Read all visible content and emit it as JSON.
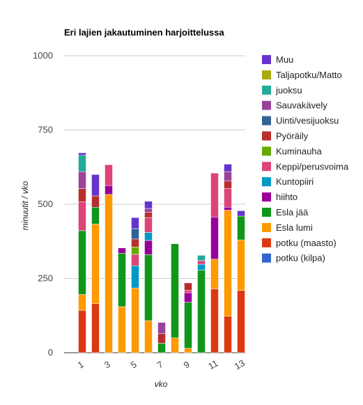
{
  "chart_data": {
    "type": "bar",
    "stacked": true,
    "title": "Eri lajien jakautuminen harjoittelussa",
    "xlabel": "vko",
    "ylabel": "minuutit / vko",
    "ylim": [
      0,
      1000
    ],
    "yticks": [
      0,
      250,
      500,
      750,
      1000
    ],
    "grid": true,
    "legend": "right",
    "x": [
      1,
      2,
      3,
      4,
      5,
      6,
      7,
      8,
      9,
      10,
      11,
      12,
      13
    ],
    "xtick_labels": [
      "1",
      "3",
      "5",
      "7",
      "9",
      "11",
      "13"
    ],
    "xtick_positions": [
      1,
      3,
      5,
      7,
      9,
      11,
      13
    ],
    "series": [
      {
        "name": "potku (kilpa)",
        "color": "#3366cc",
        "values": [
          0,
          0,
          0,
          0,
          0,
          0,
          0,
          0,
          0,
          0,
          0,
          0,
          0
        ]
      },
      {
        "name": "potku (maasto)",
        "color": "#dc3912",
        "values": [
          143,
          165,
          0,
          0,
          0,
          0,
          0,
          0,
          0,
          0,
          215,
          123,
          210
        ]
      },
      {
        "name": "Esla lumi",
        "color": "#ff9900",
        "values": [
          53,
          268,
          533,
          155,
          218,
          108,
          0,
          50,
          15,
          0,
          100,
          357,
          170
        ]
      },
      {
        "name": "Esla jää",
        "color": "#109618",
        "values": [
          215,
          57,
          0,
          180,
          0,
          222,
          32,
          317,
          155,
          278,
          0,
          0,
          80
        ]
      },
      {
        "name": "hiihto",
        "color": "#990099",
        "values": [
          0,
          0,
          30,
          18,
          0,
          48,
          0,
          0,
          32,
          0,
          142,
          10,
          0
        ]
      },
      {
        "name": "Kuntopiiri",
        "color": "#0099c6",
        "values": [
          0,
          0,
          0,
          0,
          75,
          27,
          0,
          0,
          0,
          20,
          0,
          0,
          0
        ]
      },
      {
        "name": "Keppi/perusvoima",
        "color": "#dd4477",
        "values": [
          97,
          0,
          70,
          0,
          38,
          50,
          0,
          0,
          8,
          12,
          148,
          63,
          0
        ]
      },
      {
        "name": "Kuminauha",
        "color": "#66aa00",
        "values": [
          0,
          0,
          0,
          0,
          25,
          0,
          0,
          0,
          0,
          0,
          0,
          0,
          0
        ]
      },
      {
        "name": "Pyöräily",
        "color": "#b82e2e",
        "values": [
          45,
          38,
          0,
          0,
          27,
          18,
          32,
          0,
          25,
          0,
          0,
          25,
          0
        ]
      },
      {
        "name": "Uinti/vesijuoksu",
        "color": "#316395",
        "values": [
          0,
          0,
          0,
          0,
          35,
          0,
          0,
          0,
          0,
          0,
          0,
          0,
          0
        ]
      },
      {
        "name": "Sauvakävely",
        "color": "#994499",
        "values": [
          57,
          0,
          0,
          0,
          0,
          13,
          38,
          0,
          0,
          0,
          0,
          32,
          0
        ]
      },
      {
        "name": "juoksu",
        "color": "#22aa99",
        "values": [
          55,
          0,
          0,
          0,
          0,
          0,
          0,
          0,
          0,
          18,
          0,
          0,
          0
        ]
      },
      {
        "name": "Taljapotku/Matto",
        "color": "#aaaa11",
        "values": [
          0,
          0,
          0,
          0,
          0,
          0,
          0,
          0,
          0,
          0,
          0,
          0,
          0
        ]
      },
      {
        "name": "Muu",
        "color": "#6633cc",
        "values": [
          8,
          72,
          0,
          0,
          37,
          24,
          0,
          0,
          0,
          0,
          0,
          25,
          18
        ]
      }
    ]
  }
}
